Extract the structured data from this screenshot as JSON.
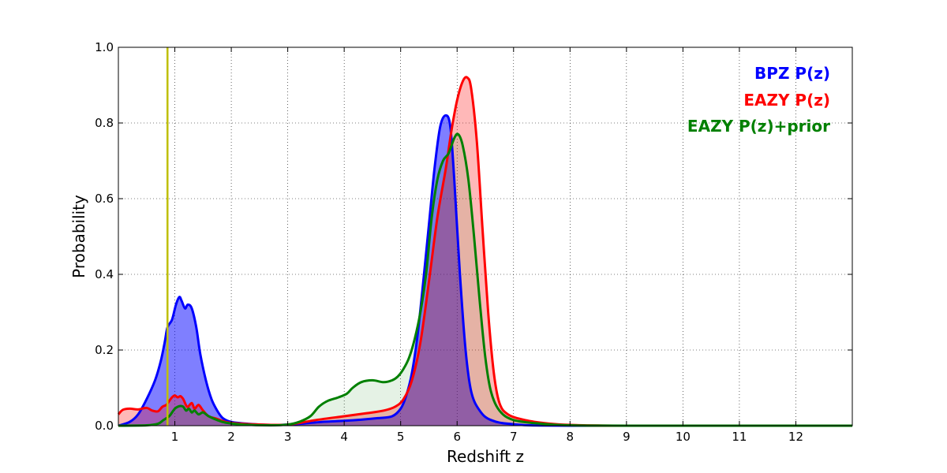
{
  "chart_data": {
    "type": "area",
    "title": "",
    "xlabel": "Redshift z",
    "ylabel": "Probability",
    "xlim": [
      0,
      13
    ],
    "ylim": [
      0,
      1.0
    ],
    "grid": true,
    "legend_position": "top-right",
    "x_ticks": [
      1,
      2,
      3,
      4,
      5,
      6,
      7,
      8,
      9,
      10,
      11,
      12
    ],
    "y_ticks": [
      0.0,
      0.2,
      0.4,
      0.6,
      0.8,
      1.0
    ],
    "x_tick_labels": [
      "1",
      "2",
      "3",
      "4",
      "5",
      "6",
      "7",
      "8",
      "9",
      "10",
      "11",
      "12"
    ],
    "y_tick_labels": [
      "0.0",
      "0.2",
      "0.4",
      "0.6",
      "0.8",
      "1.0"
    ],
    "vertical_line": {
      "x": 0.87,
      "color": "#bfbf00"
    },
    "series": [
      {
        "name": "BPZ P(z)",
        "color": "#0000ff",
        "fill": "#0000ff",
        "fill_opacity": 0.5,
        "points": [
          [
            0,
            0.0
          ],
          [
            0.2,
            0.01
          ],
          [
            0.35,
            0.03
          ],
          [
            0.5,
            0.07
          ],
          [
            0.65,
            0.12
          ],
          [
            0.75,
            0.17
          ],
          [
            0.82,
            0.22
          ],
          [
            0.87,
            0.26
          ],
          [
            0.95,
            0.28
          ],
          [
            1.02,
            0.32
          ],
          [
            1.08,
            0.34
          ],
          [
            1.12,
            0.33
          ],
          [
            1.18,
            0.31
          ],
          [
            1.23,
            0.32
          ],
          [
            1.3,
            0.31
          ],
          [
            1.38,
            0.26
          ],
          [
            1.45,
            0.19
          ],
          [
            1.55,
            0.12
          ],
          [
            1.65,
            0.07
          ],
          [
            1.75,
            0.04
          ],
          [
            1.85,
            0.02
          ],
          [
            2.0,
            0.01
          ],
          [
            2.3,
            0.005
          ],
          [
            2.7,
            0.002
          ],
          [
            3.0,
            0.003
          ],
          [
            3.3,
            0.006
          ],
          [
            3.6,
            0.01
          ],
          [
            4.0,
            0.013
          ],
          [
            4.3,
            0.016
          ],
          [
            4.6,
            0.02
          ],
          [
            4.85,
            0.025
          ],
          [
            5.0,
            0.045
          ],
          [
            5.1,
            0.08
          ],
          [
            5.2,
            0.14
          ],
          [
            5.3,
            0.24
          ],
          [
            5.4,
            0.38
          ],
          [
            5.5,
            0.53
          ],
          [
            5.6,
            0.68
          ],
          [
            5.7,
            0.79
          ],
          [
            5.8,
            0.82
          ],
          [
            5.88,
            0.79
          ],
          [
            5.95,
            0.65
          ],
          [
            6.05,
            0.4
          ],
          [
            6.15,
            0.2
          ],
          [
            6.25,
            0.09
          ],
          [
            6.4,
            0.04
          ],
          [
            6.6,
            0.015
          ],
          [
            7.0,
            0.004
          ],
          [
            8.0,
            0.0
          ],
          [
            13.0,
            0.0
          ]
        ]
      },
      {
        "name": "EAZY P(z)",
        "color": "#ff0000",
        "fill": "#ff0000",
        "fill_opacity": 0.28,
        "points": [
          [
            0,
            0.03
          ],
          [
            0.08,
            0.042
          ],
          [
            0.2,
            0.045
          ],
          [
            0.35,
            0.043
          ],
          [
            0.5,
            0.047
          ],
          [
            0.6,
            0.04
          ],
          [
            0.7,
            0.038
          ],
          [
            0.78,
            0.05
          ],
          [
            0.85,
            0.055
          ],
          [
            0.9,
            0.065
          ],
          [
            0.95,
            0.075
          ],
          [
            1.0,
            0.08
          ],
          [
            1.05,
            0.075
          ],
          [
            1.1,
            0.078
          ],
          [
            1.15,
            0.07
          ],
          [
            1.22,
            0.05
          ],
          [
            1.3,
            0.06
          ],
          [
            1.35,
            0.045
          ],
          [
            1.42,
            0.055
          ],
          [
            1.5,
            0.04
          ],
          [
            1.6,
            0.025
          ],
          [
            1.75,
            0.018
          ],
          [
            1.9,
            0.01
          ],
          [
            2.1,
            0.006
          ],
          [
            2.5,
            0.003
          ],
          [
            3.0,
            0.003
          ],
          [
            3.5,
            0.015
          ],
          [
            4.0,
            0.025
          ],
          [
            4.4,
            0.033
          ],
          [
            4.7,
            0.04
          ],
          [
            4.9,
            0.05
          ],
          [
            5.05,
            0.07
          ],
          [
            5.2,
            0.12
          ],
          [
            5.35,
            0.22
          ],
          [
            5.5,
            0.38
          ],
          [
            5.65,
            0.55
          ],
          [
            5.8,
            0.68
          ],
          [
            5.9,
            0.78
          ],
          [
            6.0,
            0.86
          ],
          [
            6.1,
            0.91
          ],
          [
            6.18,
            0.92
          ],
          [
            6.25,
            0.89
          ],
          [
            6.35,
            0.75
          ],
          [
            6.45,
            0.52
          ],
          [
            6.55,
            0.3
          ],
          [
            6.65,
            0.14
          ],
          [
            6.75,
            0.06
          ],
          [
            6.9,
            0.03
          ],
          [
            7.2,
            0.015
          ],
          [
            7.6,
            0.006
          ],
          [
            8.0,
            0.002
          ],
          [
            9.0,
            0.0
          ],
          [
            13.0,
            0.0
          ]
        ]
      },
      {
        "name": "EAZY P(z)+prior",
        "color": "#008000",
        "fill": "#008000",
        "fill_opacity": 0.1,
        "points": [
          [
            0,
            0.0
          ],
          [
            0.5,
            0.001
          ],
          [
            0.7,
            0.005
          ],
          [
            0.8,
            0.015
          ],
          [
            0.9,
            0.025
          ],
          [
            0.95,
            0.035
          ],
          [
            1.0,
            0.045
          ],
          [
            1.05,
            0.05
          ],
          [
            1.1,
            0.052
          ],
          [
            1.15,
            0.05
          ],
          [
            1.2,
            0.04
          ],
          [
            1.25,
            0.045
          ],
          [
            1.3,
            0.035
          ],
          [
            1.35,
            0.04
          ],
          [
            1.42,
            0.03
          ],
          [
            1.5,
            0.035
          ],
          [
            1.6,
            0.025
          ],
          [
            1.75,
            0.015
          ],
          [
            1.9,
            0.008
          ],
          [
            2.2,
            0.003
          ],
          [
            2.7,
            0.001
          ],
          [
            3.0,
            0.003
          ],
          [
            3.2,
            0.01
          ],
          [
            3.4,
            0.025
          ],
          [
            3.55,
            0.05
          ],
          [
            3.7,
            0.065
          ],
          [
            3.9,
            0.075
          ],
          [
            4.05,
            0.085
          ],
          [
            4.15,
            0.1
          ],
          [
            4.3,
            0.115
          ],
          [
            4.5,
            0.12
          ],
          [
            4.7,
            0.115
          ],
          [
            4.85,
            0.12
          ],
          [
            4.95,
            0.13
          ],
          [
            5.05,
            0.15
          ],
          [
            5.15,
            0.18
          ],
          [
            5.25,
            0.23
          ],
          [
            5.35,
            0.3
          ],
          [
            5.45,
            0.4
          ],
          [
            5.55,
            0.55
          ],
          [
            5.65,
            0.65
          ],
          [
            5.75,
            0.7
          ],
          [
            5.85,
            0.72
          ],
          [
            5.95,
            0.76
          ],
          [
            6.02,
            0.77
          ],
          [
            6.1,
            0.74
          ],
          [
            6.2,
            0.65
          ],
          [
            6.3,
            0.5
          ],
          [
            6.4,
            0.33
          ],
          [
            6.5,
            0.18
          ],
          [
            6.6,
            0.09
          ],
          [
            6.75,
            0.04
          ],
          [
            7.0,
            0.015
          ],
          [
            7.5,
            0.005
          ],
          [
            8.0,
            0.001
          ],
          [
            9.0,
            0.0
          ],
          [
            13.0,
            0.0
          ]
        ]
      }
    ]
  },
  "legend": {
    "items": [
      {
        "label": "BPZ P(z)",
        "color": "#0000ff"
      },
      {
        "label": "EAZY P(z)",
        "color": "#ff0000"
      },
      {
        "label": "EAZY P(z)+prior",
        "color": "#008000"
      }
    ]
  }
}
